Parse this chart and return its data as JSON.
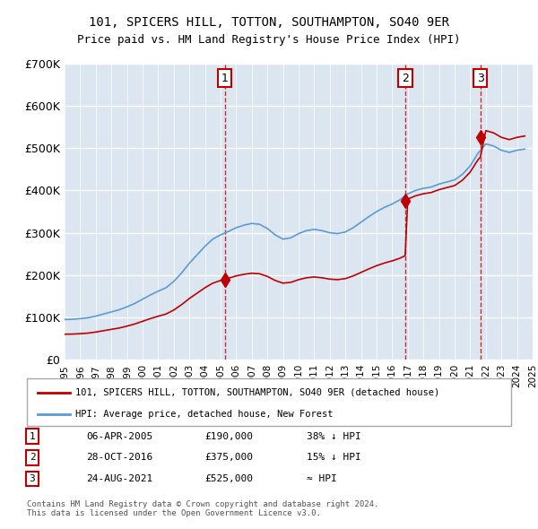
{
  "title1": "101, SPICERS HILL, TOTTON, SOUTHAMPTON, SO40 9ER",
  "title2": "Price paid vs. HM Land Registry's House Price Index (HPI)",
  "ylabel": "",
  "xlabel": "",
  "ylim": [
    0,
    700000
  ],
  "yticks": [
    0,
    100000,
    200000,
    300000,
    400000,
    500000,
    600000,
    700000
  ],
  "ytick_labels": [
    "£0",
    "£100K",
    "£200K",
    "£300K",
    "£400K",
    "£500K",
    "£600K",
    "£700K"
  ],
  "hpi_color": "#5b9bd5",
  "price_color": "#c00000",
  "bg_color": "#dce6f1",
  "plot_bg": "#dce6f1",
  "grid_color": "#ffffff",
  "transaction_dates": [
    2005.27,
    2016.83,
    2021.65
  ],
  "transaction_prices": [
    190000,
    375000,
    525000
  ],
  "transaction_labels": [
    "1",
    "2",
    "3"
  ],
  "legend_line1": "101, SPICERS HILL, TOTTON, SOUTHAMPTON, SO40 9ER (detached house)",
  "legend_line2": "HPI: Average price, detached house, New Forest",
  "table_data": [
    [
      "1",
      "06-APR-2005",
      "£190,000",
      "38% ↓ HPI"
    ],
    [
      "2",
      "28-OCT-2016",
      "£375,000",
      "15% ↓ HPI"
    ],
    [
      "3",
      "24-AUG-2021",
      "£525,000",
      "≈ HPI"
    ]
  ],
  "footer": "Contains HM Land Registry data © Crown copyright and database right 2024.\nThis data is licensed under the Open Government Licence v3.0.",
  "xmin": 1995,
  "xmax": 2025
}
